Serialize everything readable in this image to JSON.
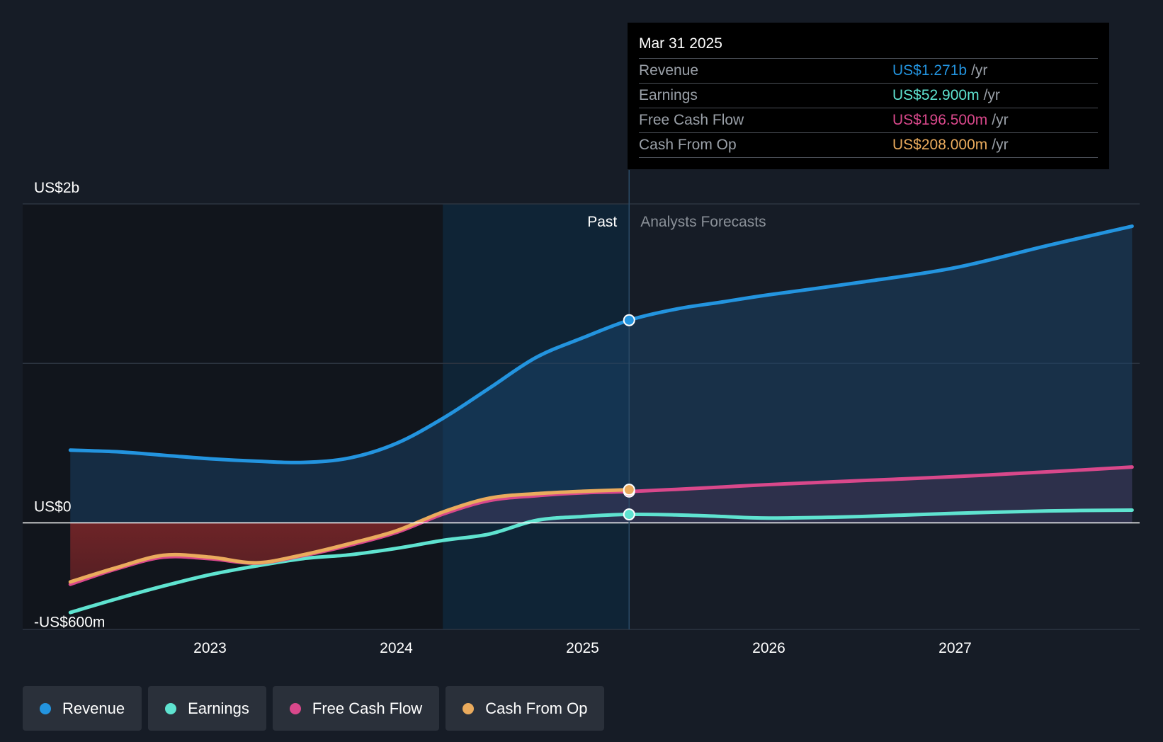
{
  "tooltip": {
    "date": "Mar 31 2025",
    "rows": [
      {
        "label": "Revenue",
        "value": "US$1.271b",
        "unit": "/yr",
        "color": "#2394df"
      },
      {
        "label": "Earnings",
        "value": "US$52.900m",
        "unit": "/yr",
        "color": "#5fe3d0"
      },
      {
        "label": "Free Cash Flow",
        "value": "US$196.500m",
        "unit": "/yr",
        "color": "#d9488b"
      },
      {
        "label": "Cash From Op",
        "value": "US$208.000m",
        "unit": "/yr",
        "color": "#eaab5d"
      }
    ]
  },
  "labels": {
    "past": "Past",
    "forecast": "Analysts Forecasts"
  },
  "legend": [
    {
      "label": "Revenue",
      "color": "#2394df"
    },
    {
      "label": "Earnings",
      "color": "#5fe3d0"
    },
    {
      "label": "Free Cash Flow",
      "color": "#d9488b"
    },
    {
      "label": "Cash From Op",
      "color": "#eaab5d"
    }
  ],
  "chart_data": {
    "type": "line",
    "ylim": [
      -600,
      2000
    ],
    "xlim": [
      2022.25,
      2027.95
    ],
    "y_tick_labels": [
      {
        "value": 2000,
        "label": "US$2b"
      },
      {
        "value": 0,
        "label": "US$0"
      },
      {
        "value": -600,
        "label": "-US$600m"
      }
    ],
    "x_ticks": [
      2023,
      2024,
      2025,
      2026,
      2027
    ],
    "x_tick_labels": [
      "2023",
      "2024",
      "2025",
      "2026",
      "2027"
    ],
    "gridlines": [
      2000,
      1000,
      0
    ],
    "past_end": 2025.25,
    "highlight_start": 2024.25,
    "series": [
      {
        "name": "Revenue",
        "color": "#2394df",
        "past": [
          [
            2022.25,
            456
          ],
          [
            2022.5,
            446
          ],
          [
            2022.75,
            424
          ],
          [
            2023.0,
            402
          ],
          [
            2023.25,
            387
          ],
          [
            2023.5,
            379
          ],
          [
            2023.75,
            407
          ],
          [
            2024.0,
            498
          ],
          [
            2024.25,
            655
          ],
          [
            2024.5,
            845
          ],
          [
            2024.75,
            1037
          ],
          [
            2025.0,
            1160
          ],
          [
            2025.25,
            1271
          ]
        ],
        "forecast": [
          [
            2025.25,
            1271
          ],
          [
            2025.5,
            1340
          ],
          [
            2025.75,
            1385
          ],
          [
            2026.0,
            1430
          ],
          [
            2026.5,
            1510
          ],
          [
            2027.0,
            1600
          ],
          [
            2027.5,
            1740
          ],
          [
            2027.95,
            1860
          ]
        ]
      },
      {
        "name": "Earnings",
        "color": "#5fe3d0",
        "past": [
          [
            2022.25,
            -562
          ],
          [
            2022.5,
            -476
          ],
          [
            2022.75,
            -396
          ],
          [
            2023.0,
            -325
          ],
          [
            2023.25,
            -270
          ],
          [
            2023.5,
            -224
          ],
          [
            2023.75,
            -200
          ],
          [
            2024.0,
            -160
          ],
          [
            2024.25,
            -110
          ],
          [
            2024.5,
            -70
          ],
          [
            2024.75,
            15
          ],
          [
            2025.0,
            40
          ],
          [
            2025.25,
            53
          ]
        ],
        "forecast": [
          [
            2025.25,
            53
          ],
          [
            2025.5,
            50
          ],
          [
            2025.75,
            40
          ],
          [
            2026.0,
            30
          ],
          [
            2026.5,
            40
          ],
          [
            2027.0,
            60
          ],
          [
            2027.5,
            75
          ],
          [
            2027.95,
            80
          ]
        ]
      },
      {
        "name": "Free Cash Flow",
        "color": "#d9488b",
        "past": [
          [
            2022.25,
            -385
          ],
          [
            2022.5,
            -288
          ],
          [
            2022.75,
            -215
          ],
          [
            2023.0,
            -225
          ],
          [
            2023.25,
            -252
          ],
          [
            2023.5,
            -205
          ],
          [
            2023.75,
            -140
          ],
          [
            2024.0,
            -60
          ],
          [
            2024.25,
            55
          ],
          [
            2024.5,
            140
          ],
          [
            2024.75,
            170
          ],
          [
            2025.0,
            188
          ],
          [
            2025.25,
            196.5
          ]
        ],
        "forecast": [
          [
            2025.25,
            196.5
          ],
          [
            2025.5,
            210
          ],
          [
            2025.75,
            225
          ],
          [
            2026.0,
            240
          ],
          [
            2026.5,
            265
          ],
          [
            2027.0,
            290
          ],
          [
            2027.5,
            320
          ],
          [
            2027.95,
            350
          ]
        ]
      },
      {
        "name": "Cash From Op",
        "color": "#eaab5d",
        "past": [
          [
            2022.25,
            -370
          ],
          [
            2022.5,
            -280
          ],
          [
            2022.75,
            -203
          ],
          [
            2023.0,
            -215
          ],
          [
            2023.25,
            -250
          ],
          [
            2023.5,
            -200
          ],
          [
            2023.75,
            -130
          ],
          [
            2024.0,
            -50
          ],
          [
            2024.25,
            68
          ],
          [
            2024.5,
            155
          ],
          [
            2024.75,
            183
          ],
          [
            2025.0,
            198
          ],
          [
            2025.25,
            208
          ]
        ],
        "forecast": []
      }
    ]
  }
}
